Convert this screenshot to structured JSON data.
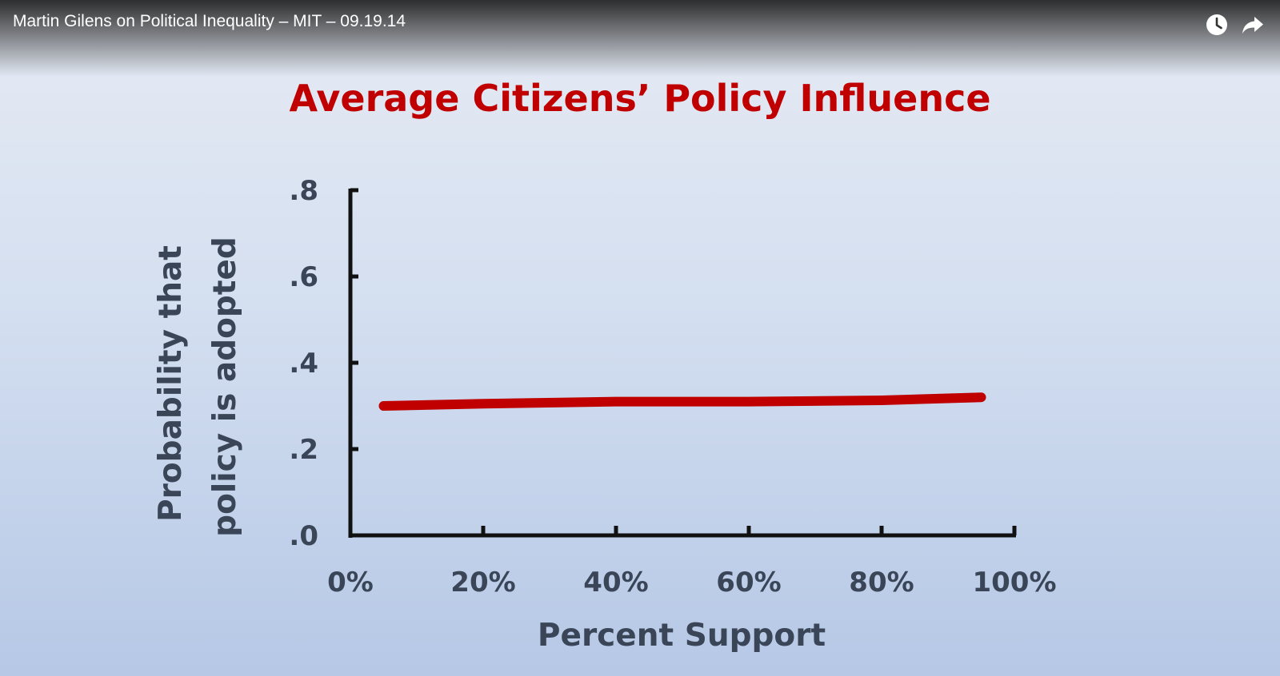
{
  "video": {
    "title": "Martin Gilens on Political Inequality – MIT – 09.19.14"
  },
  "controls": {
    "watch_later_icon": "clock-icon",
    "share_icon": "share-arrow-icon"
  },
  "colors": {
    "title": "#c00000",
    "line": "#c00000",
    "axis": "#111111",
    "label": "#3a4658"
  },
  "chart_data": {
    "type": "line",
    "title": "Average Citizens’ Policy Influence",
    "xlabel": "Percent Support",
    "ylabel": [
      "Probability that",
      "policy is adopted"
    ],
    "xlim": [
      0,
      100
    ],
    "ylim": [
      0,
      0.8
    ],
    "x_ticks": [
      0,
      20,
      40,
      60,
      80,
      100
    ],
    "x_tick_labels": [
      "0%",
      "20%",
      "40%",
      "60%",
      "80%",
      "100%"
    ],
    "y_ticks": [
      0,
      0.2,
      0.4,
      0.6,
      0.8
    ],
    "y_tick_labels": [
      ".0",
      ".2",
      ".4",
      ".6",
      ".8"
    ],
    "grid": false,
    "series": [
      {
        "x": [
          5,
          20,
          40,
          60,
          80,
          95
        ],
        "y": [
          0.3,
          0.305,
          0.31,
          0.31,
          0.313,
          0.32
        ]
      }
    ]
  }
}
